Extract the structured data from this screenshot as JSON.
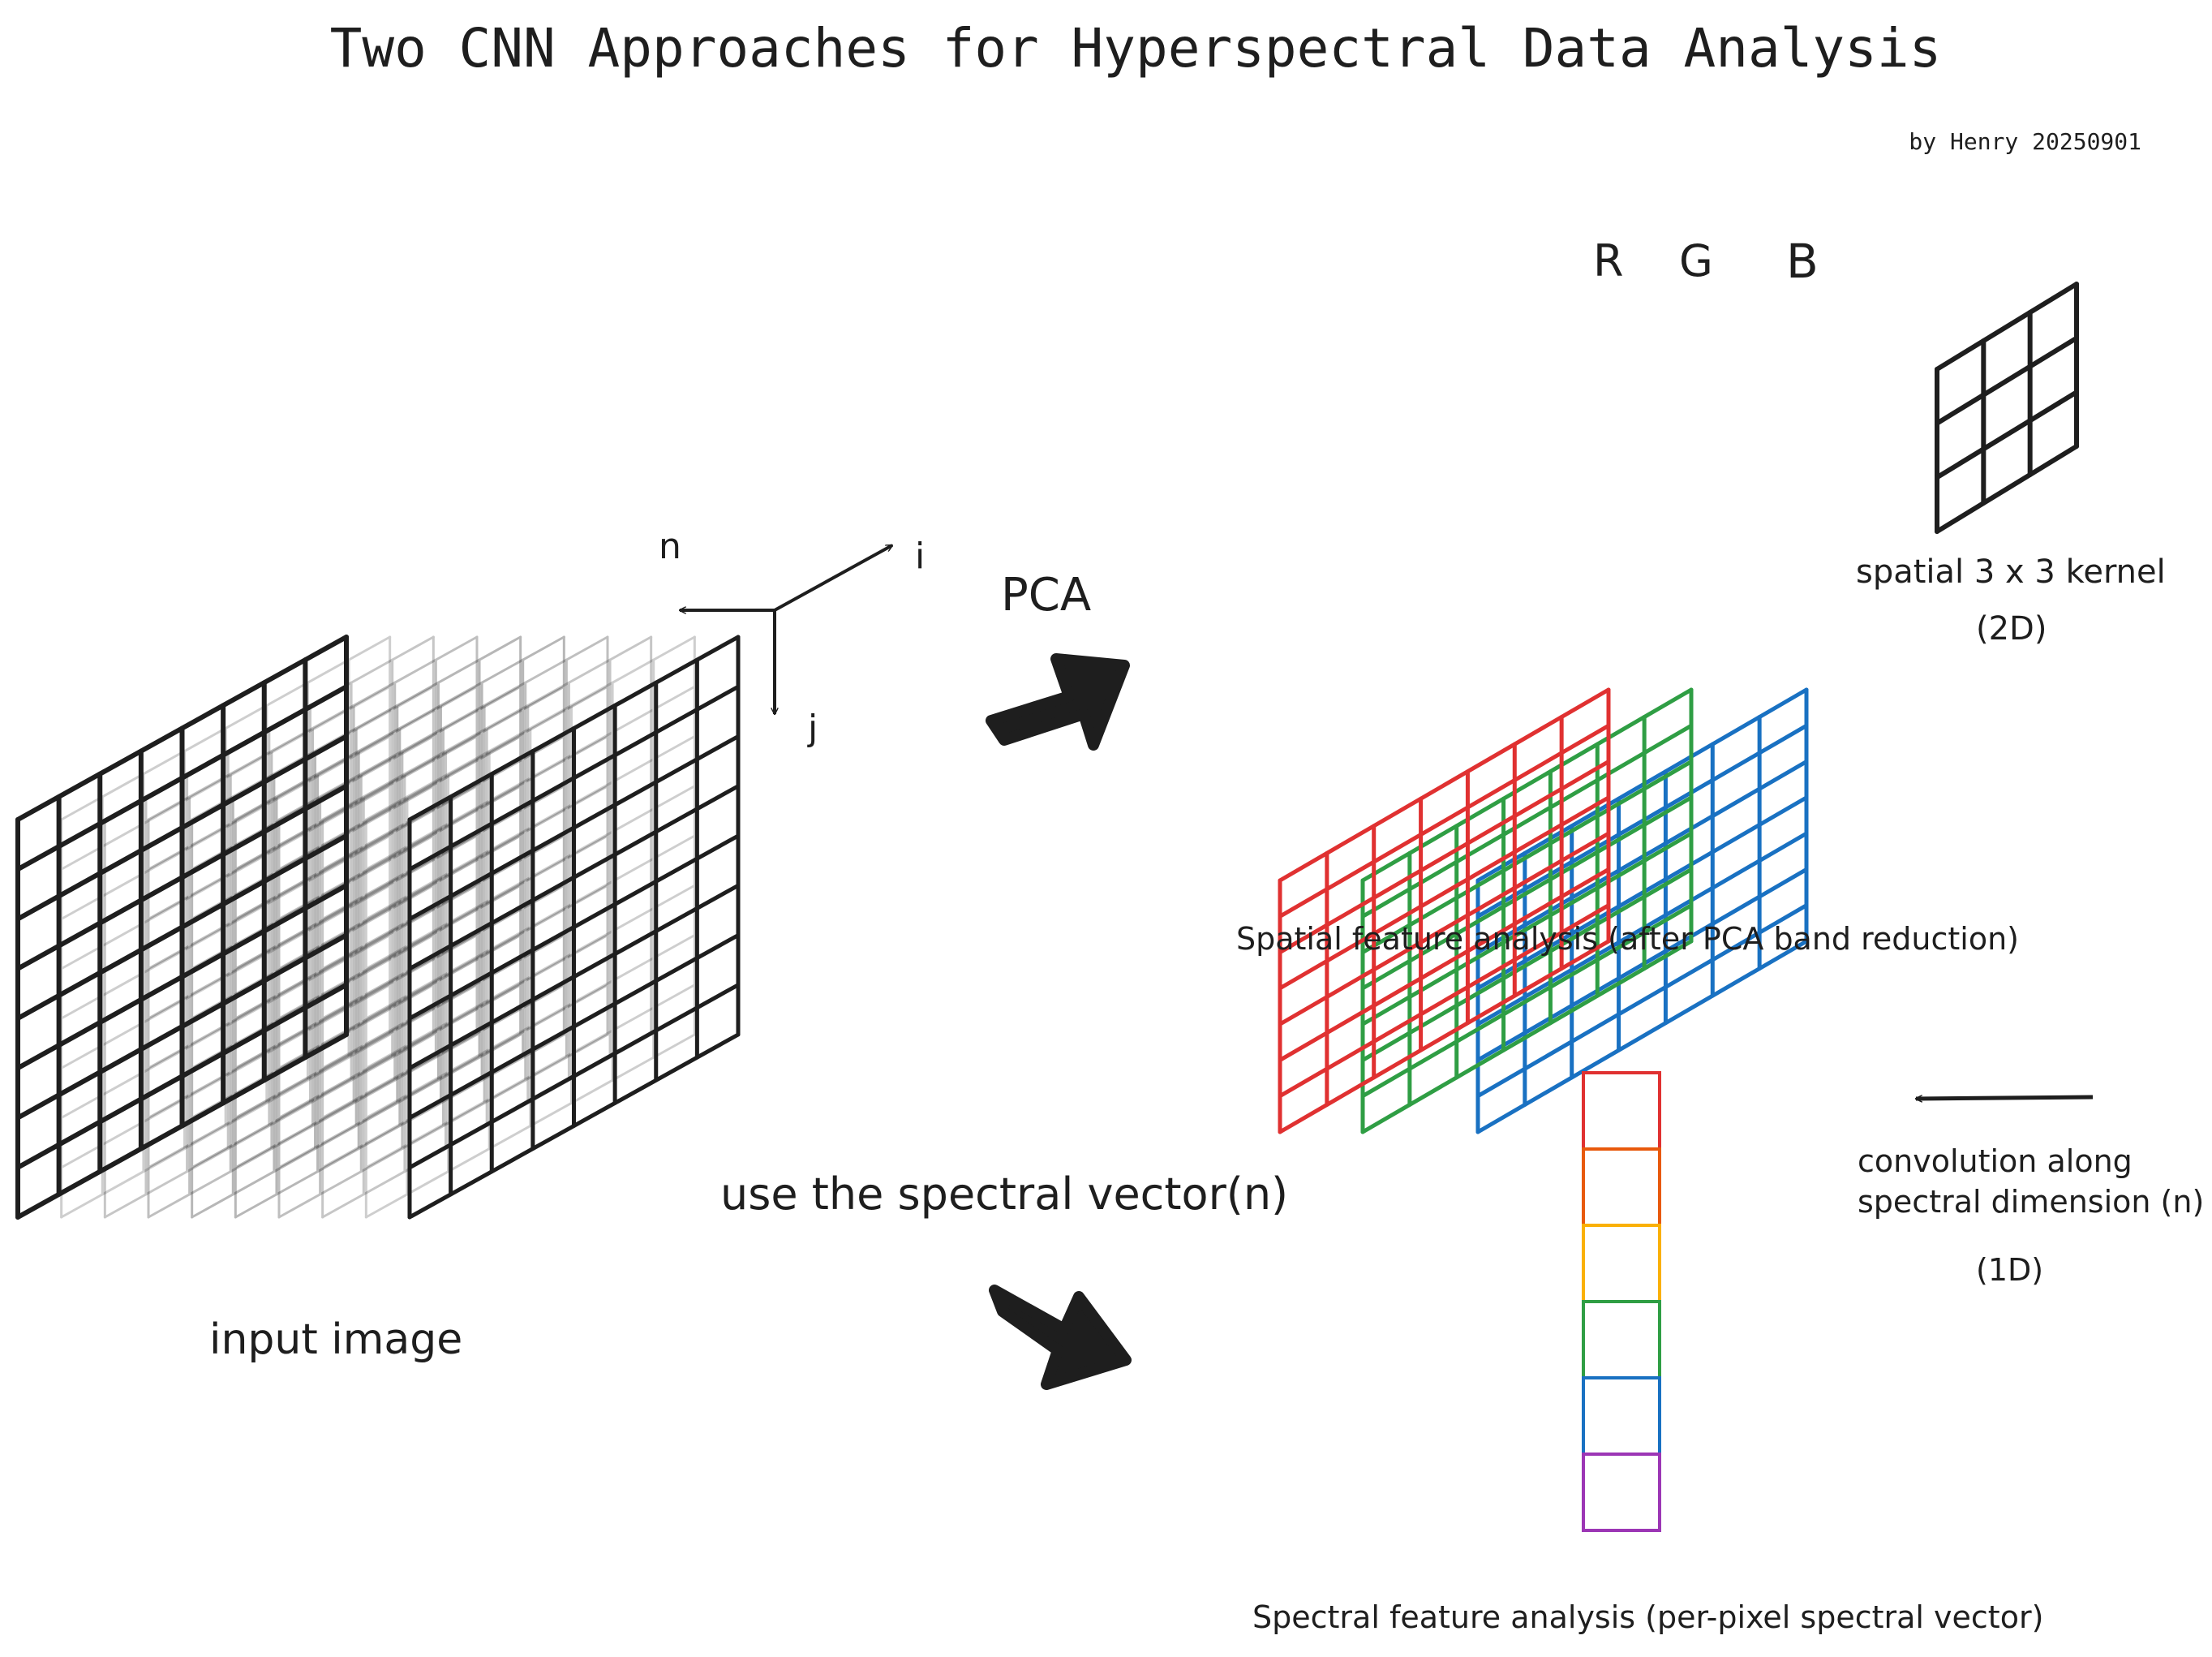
{
  "title": "Two CNN Approaches for Hyperspectral Data Analysis",
  "byline": "by Henry 20250901",
  "axes": {
    "n": "n",
    "i": "i",
    "j": "j"
  },
  "pca_label": "PCA",
  "spectral_vector_label": "use the spectral vector(n)",
  "input_label": "input image",
  "rgb_labels": {
    "r": "R",
    "g": "G",
    "b": "B"
  },
  "kernel_label": "spatial 3 x 3 kernel",
  "kernel_dim": "(2D)",
  "spatial_caption": "Spatial feature analysis (after PCA band reduction)",
  "conv_label_line1": "convolution along",
  "conv_label_line2": "spectral dimension (n)",
  "conv_dim": "(1D)",
  "spectral_caption": "Spectral feature analysis (per-pixel spectral vector)",
  "colors": {
    "red": "#e03131",
    "green": "#2f9e44",
    "blue": "#1971c2",
    "ink": "#1e1e1e",
    "spectrum": [
      "#e03131",
      "#e8590c",
      "#fab005",
      "#2f9e44",
      "#1971c2",
      "#9c36b5"
    ]
  }
}
